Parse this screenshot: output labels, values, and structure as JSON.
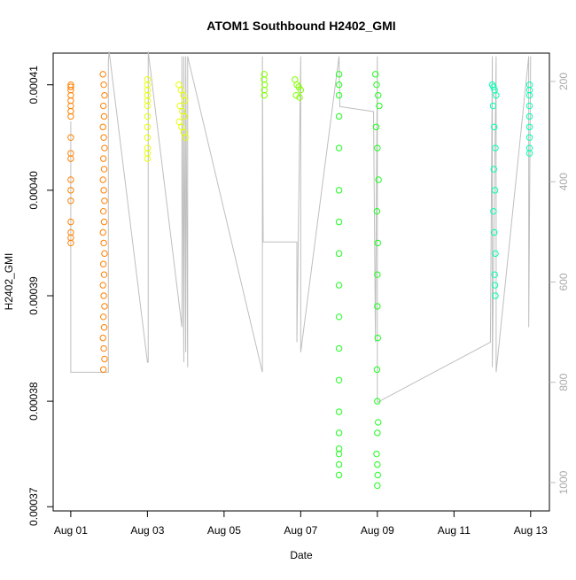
{
  "chart_data": {
    "type": "scatter",
    "title": "ATOM1 Southbound H2402_GMI",
    "xlabel": "Date",
    "ylabel": "H2402_GMI",
    "xlim": [
      -0.46,
      12.49
    ],
    "xticks": [
      {
        "value": 0,
        "label": "Aug 01"
      },
      {
        "value": 2,
        "label": "Aug 03"
      },
      {
        "value": 4,
        "label": "Aug 05"
      },
      {
        "value": 6,
        "label": "Aug 07"
      },
      {
        "value": 8,
        "label": "Aug 09"
      },
      {
        "value": 10,
        "label": "Aug 11"
      },
      {
        "value": 12,
        "label": "Aug 13"
      }
    ],
    "ylim": [
      0.0003696,
      0.000413
    ],
    "yticks": [
      0.00037,
      0.00038,
      0.00039,
      {
        "value": 0.0004,
        "label": "0.00040"
      },
      0.00041
    ],
    "y2lim": [
      1056.5,
      143.5
    ],
    "y2ticks": [
      200,
      400,
      600,
      800,
      1000
    ],
    "series": [
      {
        "color": "#FF8000",
        "x": [
          0,
          0,
          0,
          0,
          0,
          0,
          0,
          0,
          0,
          0,
          0,
          0,
          0,
          0,
          0,
          0,
          0,
          0,
          0.84,
          0.86,
          0.88,
          0.85,
          0.87,
          0.84,
          0.86,
          0.88,
          0.85,
          0.87,
          0.84,
          0.86,
          0.88,
          0.85,
          0.87,
          0.84,
          0.86,
          0.88,
          0.85,
          0.87,
          0.84,
          0.86,
          0.88,
          0.85,
          0.87,
          0.84,
          0.86,
          0.88,
          0.85
        ],
        "values": [
          0.00041,
          0.0004098,
          0.0004095,
          0.000409,
          0.0004085,
          0.000408,
          0.0004075,
          0.000407,
          0.000405,
          0.0004035,
          0.000403,
          0.000401,
          0.0004,
          0.000399,
          0.000397,
          0.0003955,
          0.000395,
          0.000396,
          0.000411,
          0.00041,
          0.000409,
          0.000408,
          0.000407,
          0.000406,
          0.000405,
          0.000404,
          0.000403,
          0.000402,
          0.000401,
          0.0004,
          0.000399,
          0.000398,
          0.000397,
          0.000396,
          0.000395,
          0.000394,
          0.000393,
          0.000392,
          0.000391,
          0.00039,
          0.000389,
          0.000388,
          0.000387,
          0.000386,
          0.000385,
          0.000384,
          0.000383
        ]
      },
      {
        "color": "#E6FF00",
        "x": [
          2,
          2,
          2,
          2,
          2,
          2,
          2,
          2,
          2,
          2,
          2,
          2,
          2.82,
          2.88,
          2.94,
          2.98,
          2.85,
          2.91,
          2.96,
          2.83,
          2.89,
          2.95,
          2.99
        ],
        "values": [
          0.0004105,
          0.00041,
          0.0004095,
          0.000409,
          0.0004085,
          0.000408,
          0.000407,
          0.000406,
          0.000405,
          0.000404,
          0.0004035,
          0.000403,
          0.00041,
          0.0004095,
          0.000409,
          0.0004085,
          0.000408,
          0.0004075,
          0.000407,
          0.0004065,
          0.000406,
          0.0004055,
          0.000405
        ]
      },
      {
        "color": "#80FF00",
        "x": [
          5.05,
          5.04,
          5.06,
          5.05,
          5.05,
          5.85,
          5.9,
          5.95,
          6.0,
          5.88,
          5.97
        ],
        "values": [
          0.000411,
          0.0004105,
          0.00041,
          0.0004095,
          0.000409,
          0.0004105,
          0.00041,
          0.0004098,
          0.0004095,
          0.000409,
          0.0004088
        ]
      },
      {
        "color": "#1AFF1A",
        "x": [
          7,
          7,
          7,
          7,
          7,
          7,
          7,
          7,
          7,
          7,
          7,
          7,
          7,
          7,
          7,
          7,
          7,
          7,
          7.95,
          7.98,
          8.02,
          8.05,
          7.97,
          8,
          8.03,
          7.99,
          8.01,
          8,
          8,
          8.01,
          7.99,
          8,
          8.02,
          8,
          7.98,
          8,
          8.01,
          8
        ],
        "values": [
          0.000411,
          0.00041,
          0.000409,
          0.000407,
          0.000404,
          0.0004,
          0.000397,
          0.000394,
          0.000391,
          0.000388,
          0.000385,
          0.000382,
          0.000379,
          0.000377,
          0.0003755,
          0.000375,
          0.000374,
          0.000373,
          0.000411,
          0.00041,
          0.000409,
          0.000408,
          0.000406,
          0.000404,
          0.000401,
          0.000398,
          0.000395,
          0.000392,
          0.000389,
          0.000386,
          0.000383,
          0.00038,
          0.000378,
          0.000377,
          0.000375,
          0.000374,
          0.000373,
          0.000372
        ]
      },
      {
        "color": "#00FFB3",
        "x": [
          11,
          11.03,
          11.06,
          11.1,
          11.02,
          11.05,
          11.08,
          11.04,
          11.07,
          11.03,
          11.05,
          11.08,
          11.06,
          11.07,
          11.08,
          11.97,
          11.97,
          11.97,
          11.97,
          11.97,
          11.97,
          11.97,
          11.97,
          11.97
        ],
        "values": [
          0.00041,
          0.0004098,
          0.0004095,
          0.000409,
          0.000408,
          0.000406,
          0.000404,
          0.000402,
          0.0004,
          0.000398,
          0.000396,
          0.000394,
          0.000392,
          0.000391,
          0.00039,
          0.00041,
          0.0004095,
          0.000409,
          0.000408,
          0.000407,
          0.000406,
          0.000405,
          0.000404,
          0.0004035
        ]
      },
      {
        "type": "line",
        "axis": "y2",
        "color": "#BEBEBE",
        "x": [
          0,
          0,
          0.98,
          0.98,
          1.0,
          2.0,
          2.02,
          2.02,
          2.9,
          2.9,
          2.95,
          2.95,
          3.0,
          3.0,
          3.05,
          3.05,
          5.0,
          5.0,
          5.02,
          5.9,
          5.9,
          6.0,
          6.0,
          7.0,
          7.02,
          7.9,
          7.95,
          8.0,
          8.0,
          10.95,
          11.0,
          11.0,
          11.1,
          11.1,
          11.95,
          11.95,
          12.0
        ],
        "values": [
          280,
          780,
          780,
          160,
          140,
          760,
          760,
          140,
          690,
          150,
          760,
          150,
          740,
          150,
          770,
          150,
          780,
          150,
          520,
          520,
          720,
          150,
          740,
          150,
          250,
          260,
          720,
          150,
          840,
          720,
          150,
          770,
          150,
          780,
          150,
          690,
          150
        ]
      }
    ]
  }
}
